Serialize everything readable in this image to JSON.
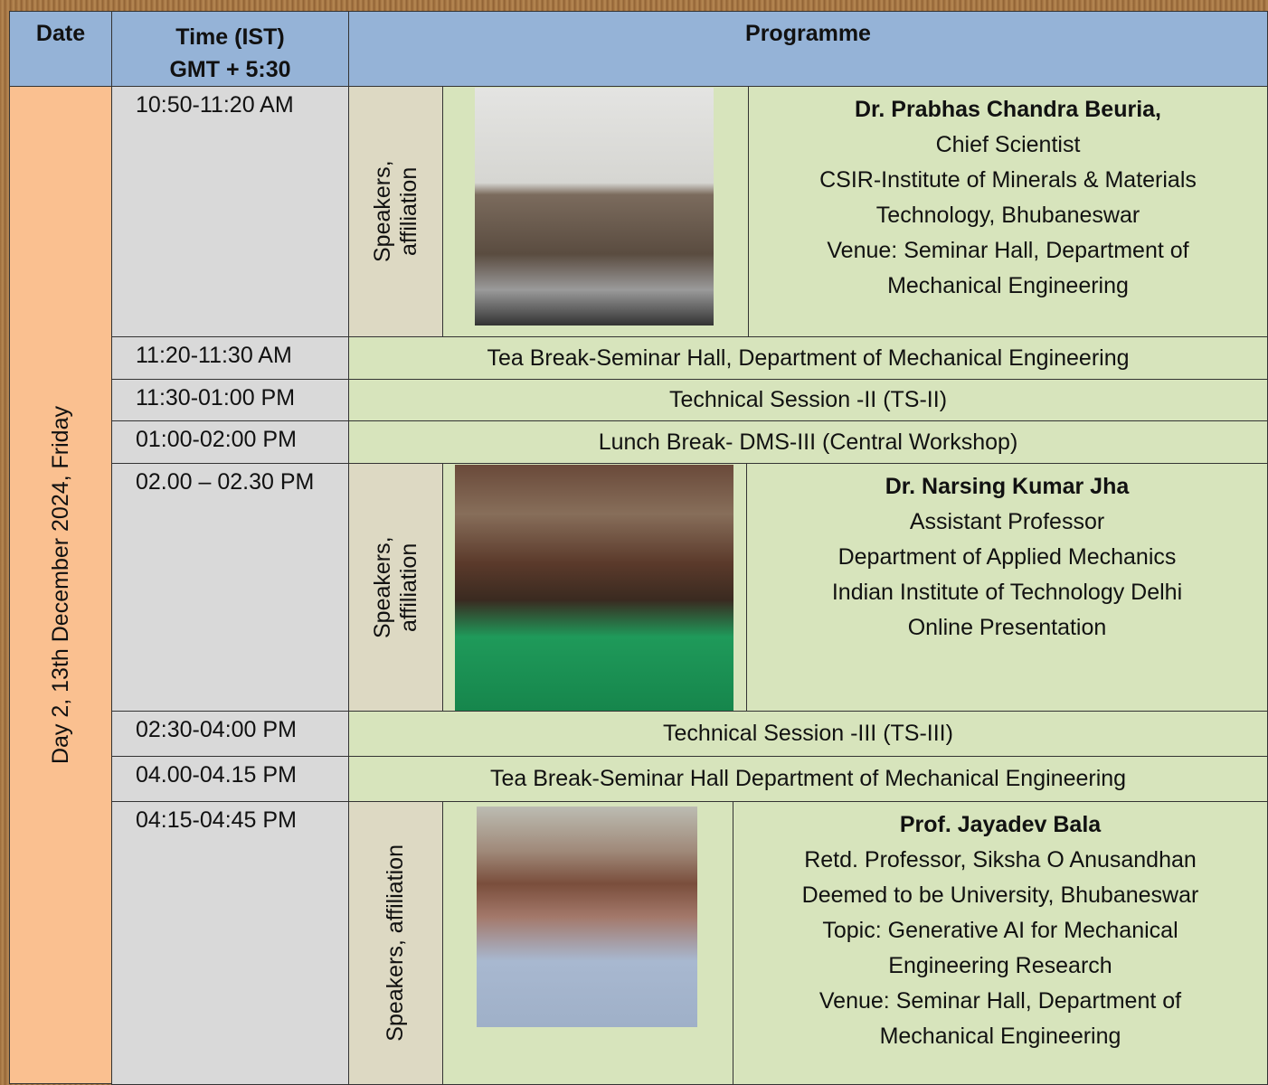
{
  "header": {
    "date": "Date",
    "time": [
      "Time  (IST)",
      "GMT + 5:30"
    ],
    "programme": "Programme"
  },
  "day": "Day 2, 13th December 2024, Friday",
  "rows": [
    {
      "time": "10:50-11:20 AM",
      "label": "Speakers, affiliation",
      "name": "Dr. Prabhas Chandra Beuria,",
      "details": [
        "Chief Scientist",
        "CSIR-Institute of Minerals & Materials",
        "Technology, Bhubaneswar",
        "Venue: Seminar Hall, Department of",
        "Mechanical Engineering"
      ]
    },
    {
      "time": "11:20-11:30 AM",
      "event": "Tea Break-Seminar Hall, Department of Mechanical Engineering"
    },
    {
      "time": "11:30-01:00 PM",
      "event": "Technical Session -II (TS-II)"
    },
    {
      "time": "01:00-02:00 PM",
      "event": "Lunch Break- DMS-III (Central Workshop)"
    },
    {
      "time": "02.00 – 02.30 PM",
      "label": "Speakers, affiliation",
      "name": "Dr. Narsing Kumar Jha",
      "details": [
        "Assistant Professor",
        "Department of Applied Mechanics",
        "Indian Institute of Technology Delhi",
        "Online Presentation"
      ]
    },
    {
      "time": "02:30-04:00 PM",
      "event": "Technical Session -III (TS-III)"
    },
    {
      "time": "04.00-04.15 PM",
      "event": "Tea Break-Seminar Hall Department of Mechanical Engineering"
    },
    {
      "time": "04:15-04:45 PM",
      "label": "Speakers, affiliation",
      "name": "Prof. Jayadev Bala",
      "details": [
        "Retd. Professor, Siksha O Anusandhan",
        "Deemed to be University, Bhubaneswar",
        "Topic: Generative AI for Mechanical",
        "Engineering Research",
        "Venue: Seminar Hall, Department of",
        "Mechanical Engineering"
      ]
    }
  ]
}
